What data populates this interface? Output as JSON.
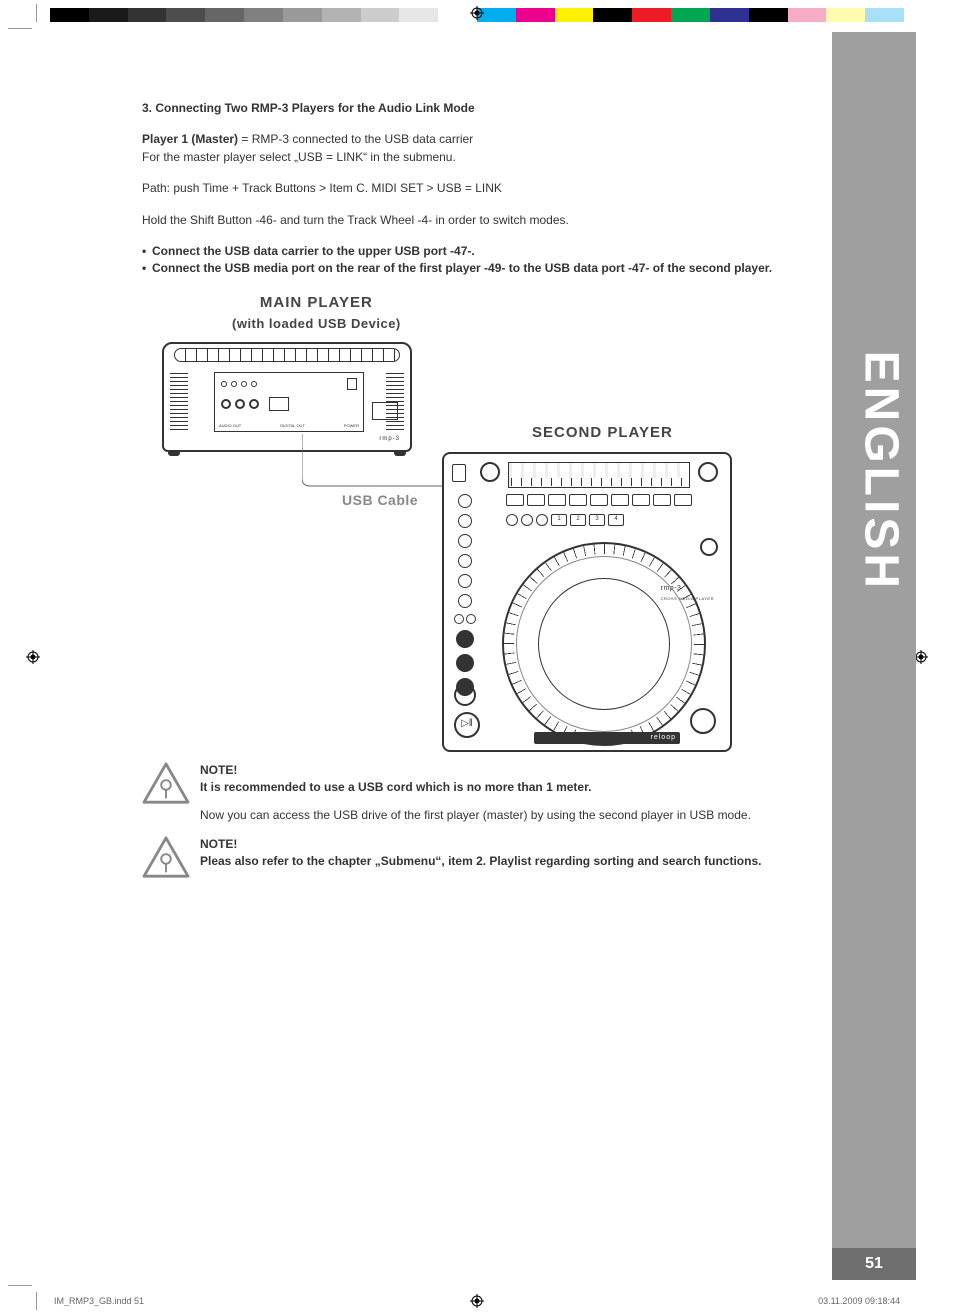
{
  "colorbar": {
    "grays": [
      "#000000",
      "#1a1a1a",
      "#333333",
      "#4d4d4d",
      "#666666",
      "#808080",
      "#999999",
      "#b3b3b3",
      "#cccccc",
      "#e6e6e6",
      "#ffffff"
    ],
    "colors": [
      "#00aeef",
      "#ec008c",
      "#fff200",
      "#000000",
      "#ed1c24",
      "#00a651",
      "#2e3192",
      "#000000",
      "#f7adc8",
      "#fffbaf",
      "#a7e0f7"
    ]
  },
  "side": {
    "lang": "ENGLISH",
    "pagenum": "51"
  },
  "section": {
    "heading": "3. Connecting Two RMP-3 Players for the Audio Link Mode",
    "p1_bold": "Player 1 (Master)",
    "p1_rest": " = RMP-3 connected to the USB data carrier",
    "p1_line2": "For the master player select „USB = LINK“ in the submenu.",
    "path": "Path: push Time + Track Buttons > Item C. MIDI SET > USB = LINK",
    "hold": "Hold the Shift Button -46- and turn the Track Wheel -4- in order to switch modes.",
    "bullet1": "Connect the USB data carrier to the upper USB port -47-.",
    "bullet2": "Connect the USB media port on the rear of the first player -49- to the USB data port -47- of the second player."
  },
  "diagram": {
    "main_label": "MAIN PLAYER",
    "main_sub": "(with loaded USB  Device)",
    "second_label": "SECOND PLAYER",
    "usb_label": "USB Cable",
    "model": "rmp-3",
    "model_sub": "CROSS MEDIA PLAYER",
    "brand": "reloop",
    "play_glyph": "▷‖"
  },
  "notes": {
    "note_label": "NOTE!",
    "note1_text": "It is recommended to use a USB cord which is no more than 1 meter.",
    "note1_follow": "Now you can access the USB drive of the first player (master) by using the second player in USB mode.",
    "note2_text": "Pleas also refer to the chapter „Submenu“, item 2. Playlist regarding sorting and search functions."
  },
  "footer": {
    "file": "IM_RMP3_GB.indd   51",
    "date": "03.11.2009   09:18:44"
  }
}
